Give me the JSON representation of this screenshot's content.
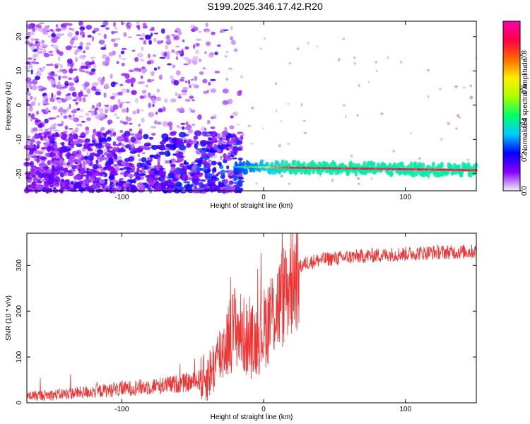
{
  "title": "S199.2025.346.17.42.R20",
  "chart_data": [
    {
      "type": "heatmap",
      "name": "spectrogram",
      "xlabel": "Height of straight line (km)",
      "ylabel": "Frequency (Hz)",
      "xlim": [
        -167,
        150
      ],
      "ylim": [
        -25,
        24.5
      ],
      "xticks": [
        -100,
        0,
        100
      ],
      "yticks": [
        -20,
        -10,
        0,
        10,
        20
      ],
      "colorbar": {
        "label": "Normalized spectral amplitude",
        "range": [
          0,
          1
        ],
        "ticks": [
          "0.0",
          "0.2",
          "0.4",
          "0.6",
          "0.8"
        ],
        "tick_values": [
          0,
          0.2,
          0.4,
          0.6,
          0.8
        ],
        "colors": [
          "#f4f0f8",
          "#8800ff",
          "#0000ff",
          "#00ccff",
          "#00ff66",
          "#aaff00",
          "#ffee00",
          "#ff6600",
          "#ff0044",
          "#ff00aa"
        ]
      },
      "features": [
        {
          "description": "scattered noise",
          "x_range": [
            -167,
            -15
          ],
          "y_range": [
            -25,
            24
          ],
          "amplitude": 0.08
        },
        {
          "description": "dense low-frequency energy",
          "x_range": [
            -167,
            -15
          ],
          "y_range": [
            -25,
            -8
          ],
          "amplitude": 0.15
        },
        {
          "description": "signal band",
          "x_range": [
            -20,
            150
          ],
          "y_center_start": -18,
          "y_center_end": -19,
          "amplitude_peak": 0.95
        }
      ]
    },
    {
      "type": "line",
      "name": "snr",
      "xlabel": "Height of straight line (km)",
      "ylabel": "SNR (10 * v/v)",
      "xlim": [
        -167,
        150
      ],
      "ylim": [
        0,
        370
      ],
      "xticks": [
        -100,
        0,
        100
      ],
      "yticks": [
        0,
        100,
        200,
        300
      ],
      "line_color": "#ee3333",
      "series": [
        {
          "name": "SNR",
          "x": [
            -167,
            -150,
            -130,
            -110,
            -90,
            -70,
            -50,
            -40,
            -35,
            -30,
            -25,
            -20,
            -15,
            -10,
            -5,
            0,
            5,
            10,
            15,
            20,
            25,
            30,
            40,
            60,
            80,
            100,
            120,
            150
          ],
          "y": [
            15,
            17,
            22,
            27,
            33,
            38,
            45,
            55,
            80,
            110,
            140,
            170,
            150,
            130,
            140,
            160,
            190,
            210,
            240,
            270,
            295,
            305,
            312,
            318,
            322,
            325,
            328,
            330
          ]
        }
      ]
    }
  ]
}
